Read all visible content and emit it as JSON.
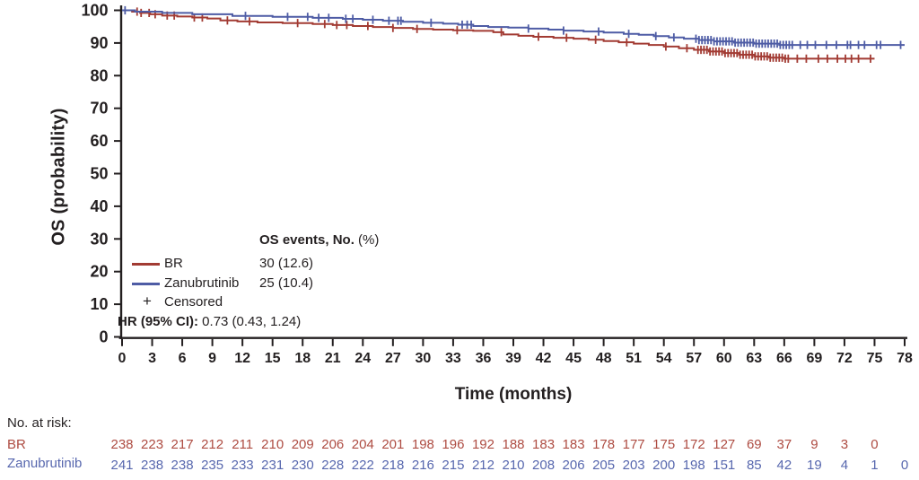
{
  "figure": {
    "background": "#ffffff",
    "axis_color": "#231f20"
  },
  "chart_data": {
    "type": "line",
    "subtype": "kaplan_meier_survival",
    "title": "",
    "xlabel": "Time (months)",
    "ylabel": "OS (probability)",
    "xlim": [
      0,
      78
    ],
    "ylim": [
      0,
      100
    ],
    "x_ticks": [
      0,
      3,
      6,
      9,
      12,
      15,
      18,
      21,
      24,
      27,
      30,
      33,
      36,
      39,
      42,
      45,
      48,
      51,
      54,
      57,
      60,
      63,
      66,
      69,
      72,
      75,
      78
    ],
    "y_ticks": [
      0,
      10,
      20,
      30,
      40,
      50,
      60,
      70,
      80,
      90,
      100
    ],
    "grid": false,
    "legend_position": "inside-lower-left",
    "legend": {
      "events_header_bold": "OS events, No.",
      "events_header_pct": " (%)",
      "censored_symbol": "+",
      "censored_label": "Censored",
      "hr_label": "HR (95% CI):",
      "hr_value": " 0.73 (0.43, 1.24)"
    },
    "at_risk": {
      "header": "No. at risk:"
    },
    "series": [
      {
        "name": "BR",
        "color": "#a23b33",
        "text_color": "#ae4c42",
        "events": "30 (12.6)",
        "steps": [
          [
            0,
            100
          ],
          [
            1,
            99.6
          ],
          [
            1.8,
            99.2
          ],
          [
            2.8,
            98.8
          ],
          [
            4,
            98.4
          ],
          [
            5.5,
            98.1
          ],
          [
            7,
            97.8
          ],
          [
            8.5,
            97.5
          ],
          [
            9.8,
            96.9
          ],
          [
            11.5,
            96.6
          ],
          [
            13.5,
            96.3
          ],
          [
            16,
            96.1
          ],
          [
            19,
            95.8
          ],
          [
            21,
            95.5
          ],
          [
            23,
            95.2
          ],
          [
            25,
            94.9
          ],
          [
            27,
            94.6
          ],
          [
            29,
            94.3
          ],
          [
            31,
            94.1
          ],
          [
            33,
            93.9
          ],
          [
            35,
            93.7
          ],
          [
            37,
            93.3
          ],
          [
            38,
            92.6
          ],
          [
            39.5,
            92.2
          ],
          [
            41,
            91.9
          ],
          [
            43,
            91.6
          ],
          [
            45,
            91.3
          ],
          [
            46.5,
            91
          ],
          [
            48,
            90.6
          ],
          [
            49.5,
            90.2
          ],
          [
            51,
            89.8
          ],
          [
            52.5,
            89.4
          ],
          [
            54,
            88.9
          ],
          [
            55.5,
            88.4
          ],
          [
            57,
            87.9
          ],
          [
            58.5,
            87.4
          ],
          [
            60,
            86.9
          ],
          [
            61.5,
            86.4
          ],
          [
            63,
            85.9
          ],
          [
            64.5,
            85.5
          ],
          [
            66,
            85.2
          ],
          [
            75,
            85.2
          ]
        ],
        "censor_times": [
          1.5,
          1.9,
          2.7,
          3.3,
          4.5,
          5.2,
          7.2,
          8,
          10.5,
          12.7,
          17.5,
          20.2,
          21.4,
          22.4,
          24.5,
          27,
          29.4,
          33.4,
          37.8,
          41.5,
          44.3,
          47.2,
          50.3,
          54.2,
          56.3,
          57.4,
          57.7,
          58,
          58.3,
          58.6,
          58.9,
          59.2,
          59.5,
          59.8,
          60.1,
          60.4,
          60.7,
          61,
          61.3,
          61.6,
          61.9,
          62.2,
          62.5,
          62.8,
          63.1,
          63.4,
          63.7,
          64,
          64.3,
          64.6,
          64.9,
          65.2,
          65.5,
          65.8,
          66.1,
          66.4,
          67.3,
          68.2,
          69.4,
          70.3,
          71.3,
          72.1,
          72.7,
          73.4,
          74.6
        ],
        "at_risk": [
          238,
          223,
          217,
          212,
          211,
          210,
          209,
          206,
          204,
          201,
          198,
          196,
          192,
          188,
          183,
          183,
          178,
          177,
          175,
          172,
          127,
          69,
          37,
          9,
          3,
          0
        ]
      },
      {
        "name": "Zanubrutinib",
        "color": "#4e5ca5",
        "text_color": "#5767ae",
        "events": "25 (10.4)",
        "steps": [
          [
            0,
            100
          ],
          [
            1.3,
            99.6
          ],
          [
            4,
            99.2
          ],
          [
            7,
            98.8
          ],
          [
            11,
            98.3
          ],
          [
            15,
            98
          ],
          [
            19,
            97.7
          ],
          [
            22,
            97.4
          ],
          [
            24,
            97.1
          ],
          [
            26,
            96.8
          ],
          [
            28,
            96.5
          ],
          [
            30,
            96.2
          ],
          [
            32,
            95.9
          ],
          [
            33.5,
            95.6
          ],
          [
            35,
            95.2
          ],
          [
            36.5,
            94.9
          ],
          [
            38.5,
            94.7
          ],
          [
            40.5,
            94.4
          ],
          [
            42.5,
            94.1
          ],
          [
            44,
            93.8
          ],
          [
            46,
            93.5
          ],
          [
            48,
            93.2
          ],
          [
            50,
            92.8
          ],
          [
            51.5,
            92.5
          ],
          [
            53,
            92.1
          ],
          [
            54.5,
            91.7
          ],
          [
            56,
            91.3
          ],
          [
            57.5,
            90.9
          ],
          [
            59,
            90.5
          ],
          [
            61,
            90.1
          ],
          [
            63,
            89.8
          ],
          [
            65.5,
            89.4
          ],
          [
            78,
            89.4
          ]
        ],
        "censor_times": [
          0.3,
          12.3,
          16.5,
          18.5,
          19.6,
          20.6,
          22.3,
          23,
          25,
          26.6,
          27.5,
          27.8,
          30.8,
          33.9,
          34.4,
          34.8,
          40.5,
          44,
          47.5,
          50.5,
          53.2,
          55,
          57.2,
          57.5,
          57.8,
          58.1,
          58.4,
          58.7,
          59,
          59.3,
          59.6,
          59.9,
          60.2,
          60.5,
          60.8,
          61.1,
          61.4,
          61.7,
          62,
          62.3,
          62.6,
          62.9,
          63.2,
          63.5,
          63.8,
          64.1,
          64.4,
          64.7,
          65,
          65.3,
          65.6,
          65.9,
          66.2,
          66.5,
          66.8,
          67.6,
          68.3,
          69.1,
          70.2,
          71.2,
          72.3,
          72.6,
          73.4,
          74,
          75.2,
          75.6,
          77.6
        ],
        "at_risk": [
          241,
          238,
          238,
          235,
          233,
          231,
          230,
          228,
          222,
          218,
          216,
          215,
          212,
          210,
          208,
          206,
          205,
          203,
          200,
          198,
          151,
          85,
          42,
          19,
          4,
          1,
          0
        ]
      }
    ]
  }
}
